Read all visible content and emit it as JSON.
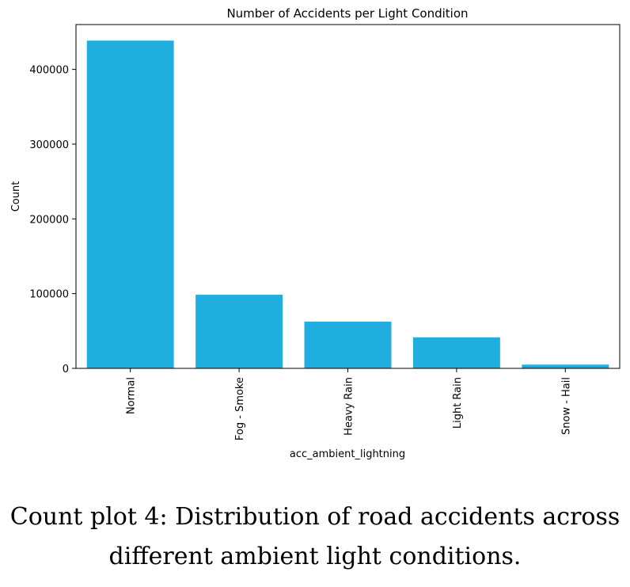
{
  "chart_data": {
    "type": "bar",
    "title": "Number of Accidents per Light Condition",
    "xlabel": "acc_ambient_lightning",
    "ylabel": "Count",
    "categories": [
      "Normal",
      "Fog - Smoke",
      "Heavy Rain",
      "Light Rain",
      "Snow - Hail"
    ],
    "values": [
      438500,
      98500,
      62500,
      41500,
      5000
    ],
    "ylim": [
      0,
      460000
    ],
    "yticks": [
      0,
      100000,
      200000,
      300000,
      400000
    ],
    "ytick_labels": [
      "0",
      "100000",
      "200000",
      "300000",
      "400000"
    ],
    "bar_color": "#20aedf",
    "grid": false,
    "legend": "none"
  },
  "caption": {
    "line1": "Count plot 4: Distribution of road accidents across",
    "line2": "different ambient light conditions."
  }
}
